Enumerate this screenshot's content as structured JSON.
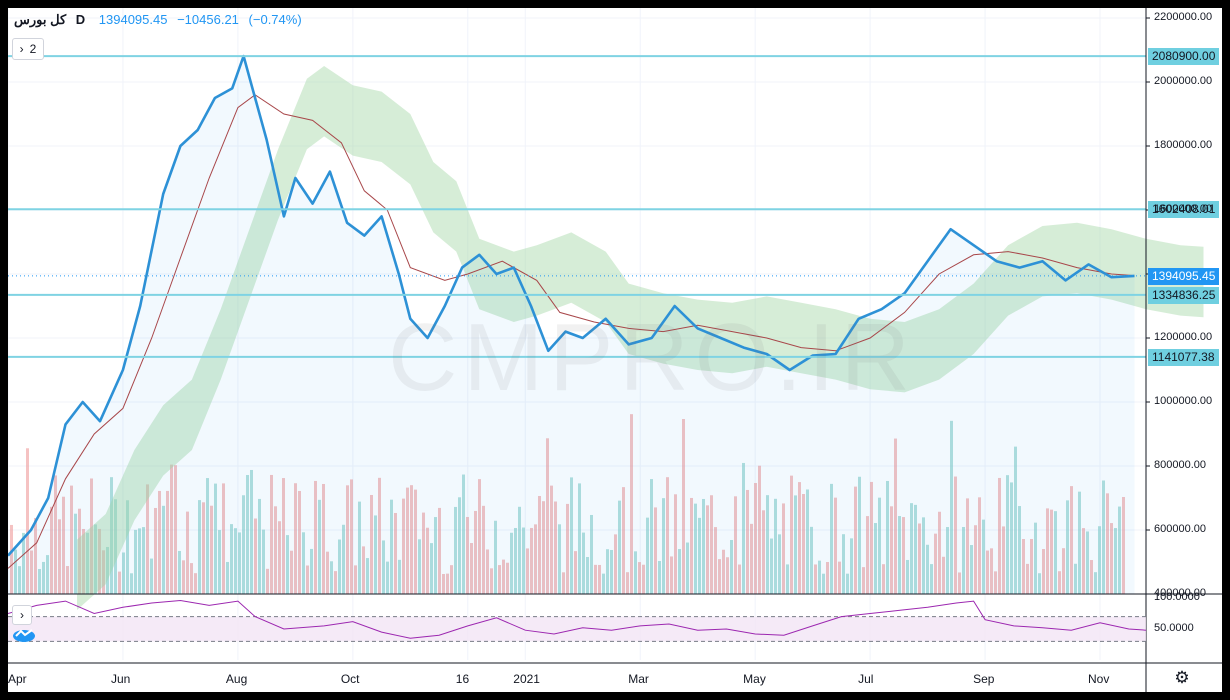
{
  "legend": {
    "symbol": "کل بورس",
    "timeframe": "D",
    "price": "1394095.45",
    "change": "−10456.21",
    "change_pct": "(−0.74%)"
  },
  "indicator_toggle": {
    "label": "2"
  },
  "watermark": "CMPRO.IR",
  "colors": {
    "price_line": "#2d91d6",
    "ma_line": "#a8474a",
    "level_line": "#7fd3e3",
    "cloud_bull": "#a5d6a7",
    "cloud_bear": "#ef9a9a",
    "volume_up": "#80cbc4",
    "volume_down": "#ef9a9a",
    "rsi_line": "#9c27b0",
    "rsi_band": "#f3e5f5",
    "price_badge": "#2196f3"
  },
  "icons": [
    "chevron-right-icon",
    "gear-icon",
    "rsi-logo-icon"
  ],
  "chart_data": {
    "type": "line",
    "title": "",
    "x_labels": [
      "Apr",
      "Jun",
      "Aug",
      "Oct",
      "16",
      "2021",
      "Mar",
      "May",
      "Jul",
      "Sep",
      "Nov"
    ],
    "x_label_pos": [
      0,
      2,
      4,
      6,
      8,
      9,
      11,
      13,
      15,
      17,
      19
    ],
    "x_months": 19.8,
    "y_ticks": [
      "2200000.00",
      "2000000.00",
      "1800000.00",
      "1600000.00",
      "1400000.00",
      "1200000.00",
      "1000000.00",
      "800000.00",
      "600000.00",
      "400000.00"
    ],
    "ylim": [
      400000,
      2200000
    ],
    "price_series": [
      [
        0,
        520000
      ],
      [
        0.4,
        600000
      ],
      [
        0.7,
        700000
      ],
      [
        1.0,
        930000
      ],
      [
        1.3,
        1000000
      ],
      [
        1.6,
        940000
      ],
      [
        2.0,
        1100000
      ],
      [
        2.3,
        1300000
      ],
      [
        2.7,
        1650000
      ],
      [
        3.0,
        1800000
      ],
      [
        3.3,
        1850000
      ],
      [
        3.6,
        1950000
      ],
      [
        3.9,
        1980000
      ],
      [
        4.1,
        2080900
      ],
      [
        4.3,
        1950000
      ],
      [
        4.5,
        1820000
      ],
      [
        4.8,
        1580000
      ],
      [
        5.0,
        1700000
      ],
      [
        5.3,
        1620000
      ],
      [
        5.6,
        1720000
      ],
      [
        5.9,
        1560000
      ],
      [
        6.2,
        1520000
      ],
      [
        6.5,
        1580000
      ],
      [
        6.8,
        1400000
      ],
      [
        7.0,
        1260000
      ],
      [
        7.3,
        1200000
      ],
      [
        7.6,
        1300000
      ],
      [
        7.9,
        1420000
      ],
      [
        8.2,
        1460000
      ],
      [
        8.5,
        1400000
      ],
      [
        8.8,
        1420000
      ],
      [
        9.1,
        1300000
      ],
      [
        9.4,
        1160000
      ],
      [
        9.7,
        1220000
      ],
      [
        10.0,
        1200000
      ],
      [
        10.4,
        1260000
      ],
      [
        10.8,
        1180000
      ],
      [
        11.2,
        1200000
      ],
      [
        11.6,
        1300000
      ],
      [
        12.0,
        1230000
      ],
      [
        12.4,
        1200000
      ],
      [
        12.8,
        1170000
      ],
      [
        13.2,
        1150000
      ],
      [
        13.6,
        1100000
      ],
      [
        14.0,
        1145000
      ],
      [
        14.4,
        1150000
      ],
      [
        14.8,
        1260000
      ],
      [
        15.2,
        1290000
      ],
      [
        15.6,
        1340000
      ],
      [
        16.0,
        1440000
      ],
      [
        16.4,
        1540000
      ],
      [
        16.8,
        1490000
      ],
      [
        17.2,
        1440000
      ],
      [
        17.6,
        1420000
      ],
      [
        18.0,
        1440000
      ],
      [
        18.4,
        1380000
      ],
      [
        18.8,
        1430000
      ],
      [
        19.2,
        1390000
      ],
      [
        19.6,
        1394095.45
      ]
    ],
    "ma_series": [
      [
        0,
        480000
      ],
      [
        0.5,
        560000
      ],
      [
        1.0,
        760000
      ],
      [
        1.5,
        900000
      ],
      [
        2.0,
        980000
      ],
      [
        2.5,
        1200000
      ],
      [
        3.0,
        1450000
      ],
      [
        3.5,
        1700000
      ],
      [
        4.0,
        1920000
      ],
      [
        4.3,
        1960000
      ],
      [
        4.8,
        1900000
      ],
      [
        5.3,
        1880000
      ],
      [
        5.8,
        1810000
      ],
      [
        6.2,
        1660000
      ],
      [
        6.6,
        1600000
      ],
      [
        7.0,
        1420000
      ],
      [
        7.6,
        1380000
      ],
      [
        8.0,
        1400000
      ],
      [
        8.6,
        1440000
      ],
      [
        9.2,
        1380000
      ],
      [
        9.6,
        1280000
      ],
      [
        10.2,
        1250000
      ],
      [
        10.8,
        1230000
      ],
      [
        11.4,
        1220000
      ],
      [
        12.0,
        1240000
      ],
      [
        12.6,
        1220000
      ],
      [
        13.2,
        1200000
      ],
      [
        13.8,
        1170000
      ],
      [
        14.4,
        1160000
      ],
      [
        15.0,
        1200000
      ],
      [
        15.6,
        1280000
      ],
      [
        16.2,
        1400000
      ],
      [
        16.8,
        1460000
      ],
      [
        17.4,
        1470000
      ],
      [
        18.0,
        1450000
      ],
      [
        18.6,
        1420000
      ],
      [
        19.2,
        1400000
      ],
      [
        19.6,
        1395000
      ]
    ],
    "levels": [
      "2080900.00",
      "1602408.01",
      "1334836.25",
      "1141077.38"
    ],
    "current_price": "1394095.45",
    "rsi": {
      "ticks": [
        "100.0000",
        "50.0000"
      ],
      "upper": 70,
      "lower": 30,
      "series": [
        [
          0,
          75
        ],
        [
          0.5,
          88
        ],
        [
          1.0,
          95
        ],
        [
          1.5,
          75
        ],
        [
          2.0,
          85
        ],
        [
          2.5,
          92
        ],
        [
          3.0,
          96
        ],
        [
          3.5,
          88
        ],
        [
          4.0,
          95
        ],
        [
          4.3,
          70
        ],
        [
          4.8,
          50
        ],
        [
          5.5,
          55
        ],
        [
          6.0,
          62
        ],
        [
          6.5,
          45
        ],
        [
          7.0,
          35
        ],
        [
          7.5,
          40
        ],
        [
          8.0,
          55
        ],
        [
          8.5,
          68
        ],
        [
          9.0,
          48
        ],
        [
          9.5,
          42
        ],
        [
          10.0,
          52
        ],
        [
          10.5,
          48
        ],
        [
          11.0,
          55
        ],
        [
          11.5,
          58
        ],
        [
          12.0,
          48
        ],
        [
          12.5,
          50
        ],
        [
          13.0,
          42
        ],
        [
          13.5,
          40
        ],
        [
          14.0,
          55
        ],
        [
          14.5,
          70
        ],
        [
          15.0,
          75
        ],
        [
          15.5,
          80
        ],
        [
          16.0,
          85
        ],
        [
          16.5,
          92
        ],
        [
          16.8,
          95
        ],
        [
          17.0,
          65
        ],
        [
          17.5,
          55
        ],
        [
          18.0,
          52
        ],
        [
          18.5,
          48
        ],
        [
          19.0,
          60
        ],
        [
          19.5,
          50
        ],
        [
          19.8,
          48
        ]
      ]
    }
  }
}
